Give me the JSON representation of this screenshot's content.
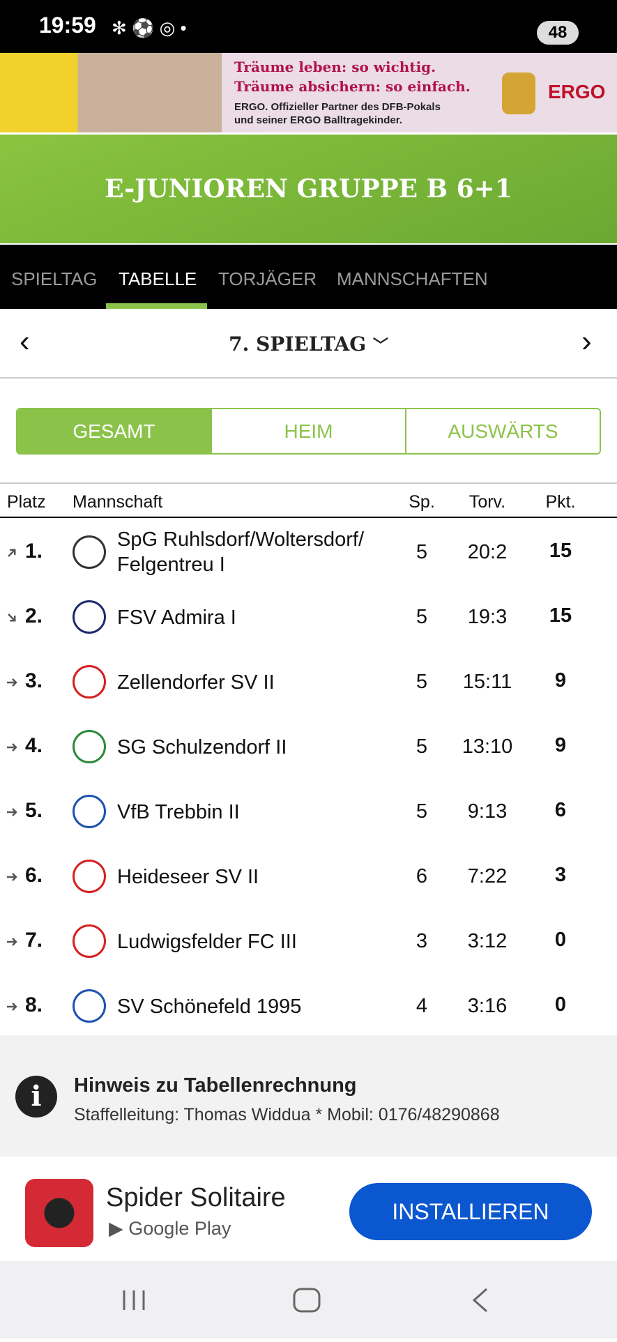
{
  "status_bar": {
    "time": "19:59",
    "battery": "48"
  },
  "top_ad": {
    "line1": "Träume leben: so wichtig.",
    "line2": "Träume absichern: so einfach.",
    "line3": "ERGO. Offizieller Partner des DFB-Pokals",
    "line4": "und seiner ERGO Balltragekinder.",
    "brand": "ERGO"
  },
  "header": {
    "title": "E-JUNIOREN GRUPPE B 6+1"
  },
  "tabs": [
    "SPIELTAG",
    "TABELLE",
    "TORJÄGER",
    "MANNSCHAFTEN"
  ],
  "matchday": "7. SPIELTAG",
  "filters": [
    "GESAMT",
    "HEIM",
    "AUSWÄRTS"
  ],
  "table": {
    "columns": [
      "Platz",
      "Mannschaft",
      "Sp.",
      "Torv.",
      "Pkt."
    ],
    "rows": [
      [
        "1.",
        "SpG Ruhlsdorf/Woltersdorf/\nFelgentreu I",
        "5",
        "20:2",
        "15"
      ],
      [
        "2.",
        "FSV Admira I",
        "5",
        "19:3",
        "15"
      ],
      [
        "3.",
        "Zellendorfer SV II",
        "5",
        "15:11",
        "9"
      ],
      [
        "4.",
        "SG Schulzendorf II",
        "5",
        "13:10",
        "9"
      ],
      [
        "5.",
        "VfB Trebbin II",
        "5",
        "9:13",
        "6"
      ],
      [
        "6.",
        "Heideseer SV II",
        "6",
        "7:22",
        "3"
      ],
      [
        "7.",
        "Ludwigsfelder FC III",
        "3",
        "3:12",
        "0"
      ],
      [
        "8.",
        "SV Schönefeld 1995",
        "4",
        "3:16",
        "0"
      ]
    ]
  },
  "note": {
    "title": "Hinweis zu Tabellenrechnung",
    "text": "Staffelleitung: Thomas Widdua * Mobil: 0176/48290868"
  },
  "bottom_ad": {
    "app": "Spider Solitaire",
    "store": "Google Play",
    "button": "INSTALLIEREN"
  }
}
